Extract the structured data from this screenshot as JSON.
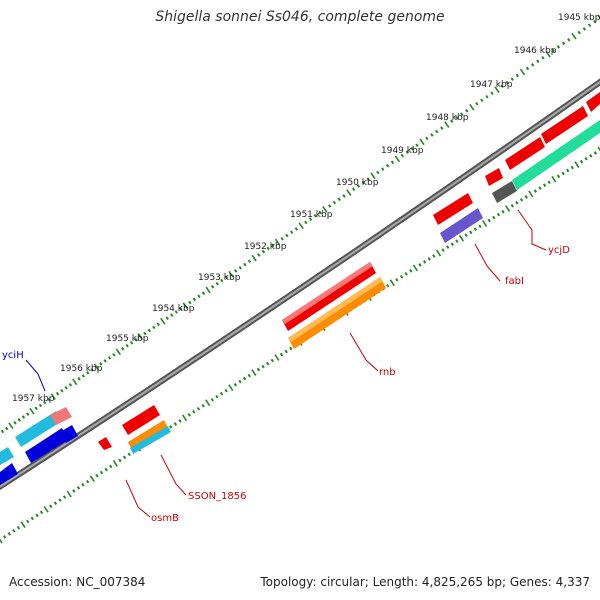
{
  "title": "Shigella sonnei Ss046, complete genome",
  "footer": {
    "accession": "Accession: NC_007384",
    "summary": "Topology: circular; Length: 4,825,265 bp; Genes: 4,337"
  },
  "scale": {
    "ticks": [
      {
        "label": "1945 kbp",
        "bp": 1945000
      },
      {
        "label": "1946 kbp",
        "bp": 1946000
      },
      {
        "label": "1947 kbp",
        "bp": 1947000
      },
      {
        "label": "1948 kbp",
        "bp": 1948000
      },
      {
        "label": "1949 kbp",
        "bp": 1949000
      },
      {
        "label": "1950 kbp",
        "bp": 1950000
      },
      {
        "label": "1951 kbp",
        "bp": 1951000
      },
      {
        "label": "1952 kbp",
        "bp": 1952000
      },
      {
        "label": "1953 kbp",
        "bp": 1953000
      },
      {
        "label": "1954 kbp",
        "bp": 1954000
      },
      {
        "label": "1955 kbp",
        "bp": 1955000
      },
      {
        "label": "1956 kbp",
        "bp": 1956000
      },
      {
        "label": "1957 kbp",
        "bp": 1957000
      }
    ]
  },
  "genes": [
    {
      "name": "ycjD",
      "color": "#cc0000"
    },
    {
      "name": "fabI",
      "color": "#cc0000"
    },
    {
      "name": "rnb",
      "color": "#cc0000"
    },
    {
      "name": "SSON_1856",
      "color": "#cc0000"
    },
    {
      "name": "osmB",
      "color": "#cc0000"
    },
    {
      "name": "yciH",
      "color": "#0000cc"
    }
  ],
  "colors": {
    "cds_red": "#ee0000",
    "cds_orange": "#ff8c00",
    "cds_cyan": "#22bbdd",
    "cds_green": "#22dd99",
    "cds_purple": "#6655cc",
    "cds_gray": "#555555",
    "cds_blue": "#0000dd",
    "cds_pink": "#ee7777",
    "tick_green": "#228822",
    "backbone": "#777777"
  }
}
